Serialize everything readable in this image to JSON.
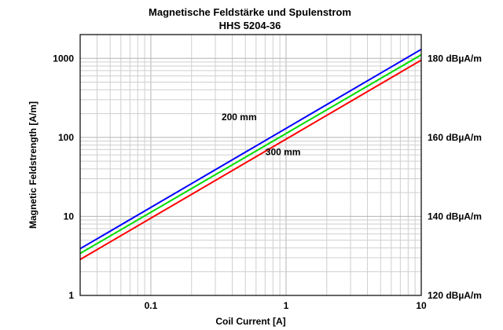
{
  "chart_data": {
    "type": "line",
    "title": "Magnetische Feldstärke und Spulenstrom",
    "subtitle": "HHS 5204-36",
    "xlabel": "Coil Current [A]",
    "ylabel": "Magnetic Feldstrength [A/m]",
    "xscale": "log",
    "yscale": "log",
    "xlim": [
      0.03,
      10
    ],
    "ylim": [
      1,
      2000
    ],
    "x_ticks": [
      {
        "value": 0.1,
        "label": "0.1"
      },
      {
        "value": 1,
        "label": "1"
      },
      {
        "value": 10,
        "label": "10"
      }
    ],
    "y_ticks": [
      {
        "value": 1,
        "label": "1"
      },
      {
        "value": 10,
        "label": "10"
      },
      {
        "value": 100,
        "label": "100"
      },
      {
        "value": 1000,
        "label": "1000"
      }
    ],
    "y2_ticks": [
      {
        "value": 1,
        "label": "120 dBµA/m"
      },
      {
        "value": 10,
        "label": "140 dBµA/m"
      },
      {
        "value": 100,
        "label": "160 dBµA/m"
      },
      {
        "value": 1000,
        "label": "180 dBµA/m"
      }
    ],
    "grid": true,
    "series": [
      {
        "name": "blue",
        "color": "#0000ff",
        "x": [
          0.03,
          10
        ],
        "y": [
          3.9,
          1300
        ]
      },
      {
        "name": "green",
        "color": "#00dd00",
        "x": [
          0.03,
          10
        ],
        "y": [
          3.4,
          1110
        ]
      },
      {
        "name": "red",
        "color": "#ff0000",
        "x": [
          0.03,
          10
        ],
        "y": [
          2.85,
          950
        ]
      }
    ],
    "annotations": [
      {
        "text": "200 mm",
        "x": 0.45,
        "y": 180
      },
      {
        "text": "300 mm",
        "x": 0.95,
        "y": 65
      }
    ]
  }
}
